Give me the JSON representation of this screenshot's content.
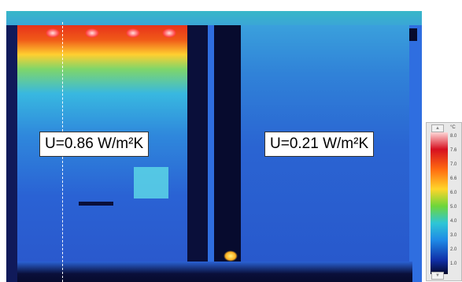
{
  "annotations": {
    "left_u_value": "U=0.86 W/m²K",
    "right_u_value": "U=0.21 W/m²K"
  },
  "scale": {
    "unit": "°C",
    "ticks": [
      "8.0",
      "7.6",
      "7.0",
      "6.6",
      "6.0",
      "5.0",
      "4.0",
      "3.0",
      "2.0",
      "1.0"
    ],
    "up_icon": "chevron-up-icon",
    "down_icon": "chevron-down-icon"
  },
  "colors": {
    "hot": "#e02020",
    "warm": "#ffb020",
    "mid": "#3ac8e0",
    "cool": "#2a5bd0",
    "cold": "#0a0f3a"
  }
}
